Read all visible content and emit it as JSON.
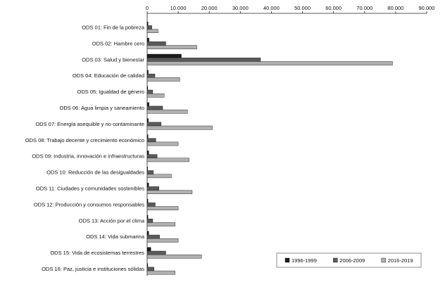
{
  "chart_data": {
    "type": "bar",
    "orientation": "horizontal",
    "title": "",
    "xlabel": "",
    "ylabel": "",
    "xlim": [
      0,
      90000
    ],
    "x_ticks": [
      "0",
      "10.000",
      "20.000",
      "30.000",
      "40.000",
      "50.000",
      "60.000",
      "70.000",
      "80.000",
      "90.000"
    ],
    "x_tick_values": [
      0,
      10000,
      20000,
      30000,
      40000,
      50000,
      60000,
      70000,
      80000,
      90000
    ],
    "x_axis_position": "top",
    "grid": false,
    "legend_position": "bottom-right",
    "categories": [
      "ODS 01: Fin de la pobreza",
      "ODS 02: Hambre cero",
      "ODS 03: Salud y bienestar",
      "ODS 04: Educación de calidad",
      "ODS 05: Igualdad de género",
      "ODS 06: Agua limpia y saneamiento",
      "ODS 07: Energía asequible y no contaminante",
      "ODS 08: Trabajo decente y crecimiento económico",
      "ODS 09: Industria, innovación e infraestructuras",
      "ODS 10: Reducción de las desigualdades",
      "ODS 11: Ciudades y comunidades sostenibles",
      "ODS 12: Producción y consumos responsables",
      "ODS 13: Acción por el clima",
      "ODS 14: Vida submarina",
      "ODS 15: Vida de ecosistemas terrestres",
      "ODS 16: Paz, justicia e instituciones sólidas"
    ],
    "series": [
      {
        "name": "1996-1999",
        "color": "#1c1c1c",
        "values": [
          300,
          600,
          11000,
          350,
          200,
          600,
          400,
          300,
          500,
          150,
          500,
          250,
          250,
          500,
          1200,
          200
        ]
      },
      {
        "name": "2006-2009",
        "color": "#5a5a5a",
        "values": [
          1500,
          6000,
          36500,
          2500,
          1800,
          5000,
          4500,
          2800,
          3200,
          2000,
          3800,
          2600,
          1800,
          4000,
          6000,
          2200
        ]
      },
      {
        "name": "2016-2019",
        "color": "#b0b0b0",
        "values": [
          3500,
          16000,
          79000,
          10500,
          5500,
          13000,
          21000,
          10000,
          13500,
          7800,
          14500,
          10000,
          9000,
          10000,
          17500,
          9000
        ]
      }
    ]
  }
}
